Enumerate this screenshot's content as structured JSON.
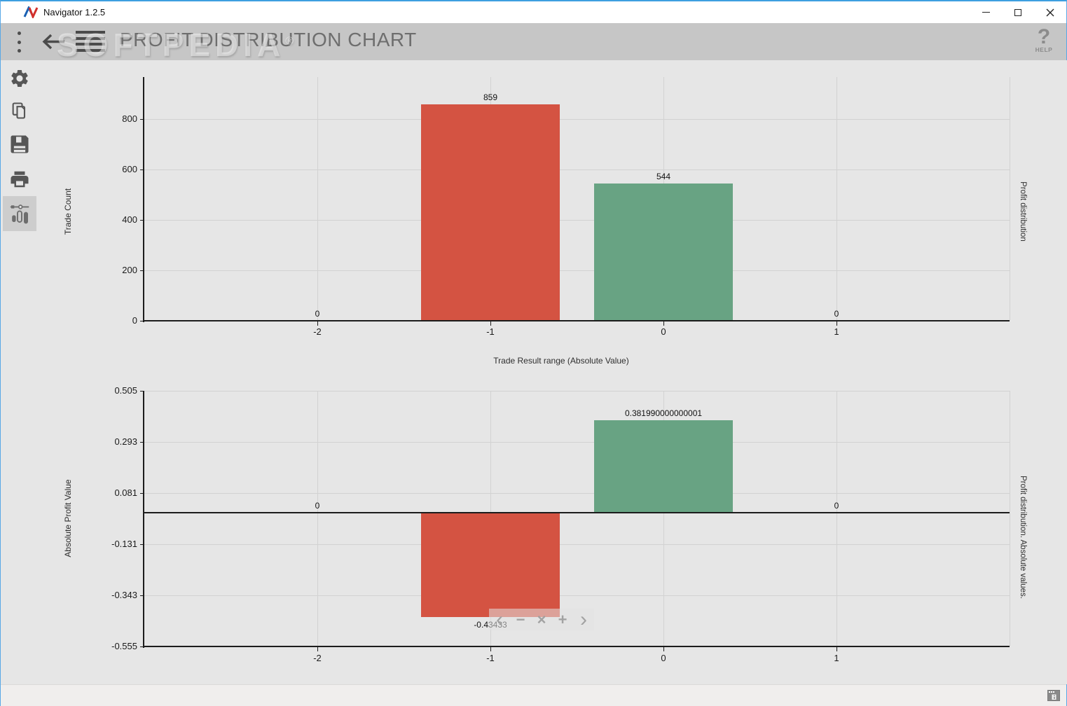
{
  "window": {
    "title": "Navigator 1.2.5"
  },
  "header": {
    "title": "PROFIT DISTRIBUTION CHART",
    "watermark": "SOFTPEDIA",
    "watermark_reg": "®",
    "help_glyph": "?",
    "help_label": "HELP"
  },
  "sidebar": {
    "items": [
      {
        "id": "settings",
        "icon": "gear-icon",
        "active": false
      },
      {
        "id": "copy",
        "icon": "copy-icon",
        "active": false
      },
      {
        "id": "save",
        "icon": "save-icon",
        "active": false
      },
      {
        "id": "print",
        "icon": "print-icon",
        "active": false
      },
      {
        "id": "profit-chart",
        "icon": "candlestick-chart-icon",
        "active": true
      }
    ]
  },
  "zoom_toolbar": {
    "buttons": [
      {
        "name": "pan-left",
        "glyph": "‹"
      },
      {
        "name": "zoom-out",
        "glyph": "−"
      },
      {
        "name": "reset-zoom",
        "glyph": "×"
      },
      {
        "name": "zoom-in",
        "glyph": "+"
      },
      {
        "name": "pan-right",
        "glyph": "›"
      }
    ]
  },
  "colors": {
    "negative_bar": "#d45342",
    "positive_bar": "#68a383",
    "plot_background": "#e6e6e6",
    "gridline": "#d2d2d2",
    "header_background": "#c6c6c6"
  },
  "chart_data": [
    {
      "type": "bar",
      "title_right": "Profit distribution",
      "xlabel": "Trade Result range (Absolute Value)",
      "ylabel": "Trade Count",
      "categories": [
        -2,
        -1,
        0,
        1
      ],
      "xtick_labels": [
        "-2",
        "-1",
        "0",
        "1"
      ],
      "values": [
        0,
        859,
        544,
        0
      ],
      "value_labels": [
        "0",
        "859",
        "544",
        "0"
      ],
      "bar_colors": [
        null,
        "#d45342",
        "#68a383",
        null
      ],
      "yticks": [
        0,
        200,
        400,
        600,
        800
      ],
      "ytick_labels": [
        "0",
        "200",
        "400",
        "600",
        "800"
      ],
      "ylim": [
        0,
        966
      ],
      "xlim": [
        -3,
        2
      ],
      "grid": true,
      "legend": "none"
    },
    {
      "type": "bar",
      "title_right": "Profit distribution. Absolute values.",
      "xlabel": "",
      "ylabel": "Absolute Profit Value",
      "categories": [
        -2,
        -1,
        0,
        1
      ],
      "xtick_labels": [
        "-2",
        "-1",
        "0",
        "1"
      ],
      "values": [
        0,
        -0.43433,
        0.381990000000001,
        0
      ],
      "value_labels": [
        "0",
        "-0.43433",
        "0.381990000000001",
        "0"
      ],
      "bar_colors": [
        null,
        "#d45342",
        "#68a383",
        null
      ],
      "yticks": [
        0.505,
        0.293,
        0.081,
        -0.131,
        -0.343,
        -0.555
      ],
      "ytick_labels": [
        "0.505",
        "0.293",
        "0.081",
        "-0.131",
        "-0.343",
        "-0.555"
      ],
      "ylim": [
        -0.555,
        0.505
      ],
      "xlim": [
        -3,
        2
      ],
      "grid": true,
      "legend": "none"
    }
  ]
}
